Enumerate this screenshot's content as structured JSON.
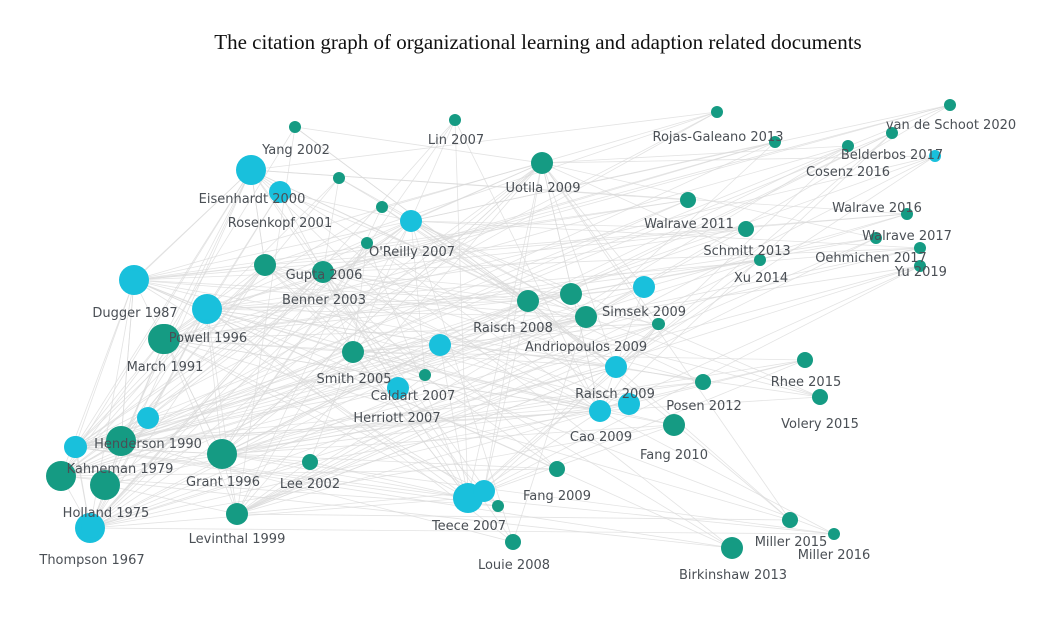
{
  "title": "The citation graph of organizational learning and adaption related documents",
  "colors": {
    "teal": "#159b83",
    "cyan": "#19c0dc",
    "edge": "#d9d9d9",
    "label": "#4a4f55"
  },
  "nodes": [
    {
      "id": "yang2002",
      "label": "Yang 2002",
      "color": "teal",
      "size": "xs"
    },
    {
      "id": "lin2007",
      "label": "Lin 2007",
      "color": "teal",
      "size": "xs"
    },
    {
      "id": "rojas2013",
      "label": "Rojas-Galeano 2013",
      "color": "teal",
      "size": "xs"
    },
    {
      "id": "vandeschoot2020",
      "label": "van de Schoot 2020",
      "color": "teal",
      "size": "xs"
    },
    {
      "id": "belderbos2017",
      "label": "Belderbos 2017",
      "color": "teal",
      "size": "xs"
    },
    {
      "id": "cosenz2016",
      "label": "Cosenz 2016",
      "color": "teal",
      "size": "xs"
    },
    {
      "id": "walrave2016",
      "label": "Walrave 2016",
      "color": "teal",
      "size": "xs"
    },
    {
      "id": "walrave2017",
      "label": "Walrave 2017",
      "color": "teal",
      "size": "xs"
    },
    {
      "id": "oehmichen2017",
      "label": "Oehmichen 2017",
      "color": "teal",
      "size": "xs"
    },
    {
      "id": "yu2019",
      "label": "Yu 2019",
      "color": "teal",
      "size": "xs"
    },
    {
      "id": "eisenhardt2000",
      "label": "Eisenhardt 2000",
      "color": "cyan",
      "size": "l"
    },
    {
      "id": "rosenkopf2001",
      "label": "Rosenkopf 2001",
      "color": "cyan",
      "size": "m"
    },
    {
      "id": "oreilly2007",
      "label": "O'Reilly 2007",
      "color": "cyan",
      "size": "m"
    },
    {
      "id": "uotila2009",
      "label": "Uotila 2009",
      "color": "teal",
      "size": "m"
    },
    {
      "id": "walrave2011",
      "label": "Walrave 2011",
      "color": "teal",
      "size": "s"
    },
    {
      "id": "schmitt2013",
      "label": "Schmitt 2013",
      "color": "teal",
      "size": "s"
    },
    {
      "id": "xu2014",
      "label": "Xu 2014",
      "color": "teal",
      "size": "xs"
    },
    {
      "id": "gupta2006",
      "label": "Gupta 2006",
      "color": "teal",
      "size": "m"
    },
    {
      "id": "benner2003",
      "label": "Benner 2003",
      "color": "teal",
      "size": "m"
    },
    {
      "id": "dugger1987",
      "label": "Dugger 1987",
      "color": "cyan",
      "size": "l"
    },
    {
      "id": "powell1996",
      "label": "Powell 1996",
      "color": "cyan",
      "size": "l"
    },
    {
      "id": "march1991",
      "label": "March 1991",
      "color": "teal",
      "size": "l"
    },
    {
      "id": "raisch2008",
      "label": "Raisch 2008",
      "color": "teal",
      "size": "m"
    },
    {
      "id": "simsek2009",
      "label": "Simsek 2009",
      "color": "teal",
      "size": "m"
    },
    {
      "id": "andriopoulos2009",
      "label": "Andriopoulos 2009",
      "color": "teal",
      "size": "xs"
    },
    {
      "id": "smith2005",
      "label": "Smith 2005",
      "color": "teal",
      "size": "m"
    },
    {
      "id": "caldart2007",
      "label": "Caldart 2007",
      "color": "cyan",
      "size": "m"
    },
    {
      "id": "herriott2007",
      "label": "Herriott 2007",
      "color": "teal",
      "size": "xs"
    },
    {
      "id": "raisch2009",
      "label": "Raisch 2009",
      "color": "cyan",
      "size": "m"
    },
    {
      "id": "rhee2015",
      "label": "Rhee 2015",
      "color": "teal",
      "size": "s"
    },
    {
      "id": "posen2012",
      "label": "Posen 2012",
      "color": "teal",
      "size": "s"
    },
    {
      "id": "volery2015",
      "label": "Volery 2015",
      "color": "teal",
      "size": "s"
    },
    {
      "id": "cao2009",
      "label": "Cao 2009",
      "color": "cyan",
      "size": "m"
    },
    {
      "id": "fang2010",
      "label": "Fang 2010",
      "color": "teal",
      "size": "m"
    },
    {
      "id": "henderson1990",
      "label": "Henderson 1990",
      "color": "teal",
      "size": "l"
    },
    {
      "id": "kahneman1979",
      "label": "Kahneman 1979",
      "color": "cyan",
      "size": "m"
    },
    {
      "id": "grant1996",
      "label": "Grant 1996",
      "color": "teal",
      "size": "l"
    },
    {
      "id": "lee2002",
      "label": "Lee 2002",
      "color": "teal",
      "size": "s"
    },
    {
      "id": "fang2009",
      "label": "Fang 2009",
      "color": "teal",
      "size": "s"
    },
    {
      "id": "holland1975",
      "label": "Holland 1975",
      "color": "teal",
      "size": "l"
    },
    {
      "id": "levinthal1999",
      "label": "Levinthal 1999",
      "color": "teal",
      "size": "m"
    },
    {
      "id": "teece2007",
      "label": "Teece 2007",
      "color": "cyan",
      "size": "l"
    },
    {
      "id": "thompson1967",
      "label": "Thompson 1967",
      "color": "cyan",
      "size": "l"
    },
    {
      "id": "louie2008",
      "label": "Louie 2008",
      "color": "teal",
      "size": "s"
    },
    {
      "id": "miller2015",
      "label": "Miller 2015",
      "color": "teal",
      "size": "s"
    },
    {
      "id": "miller2016",
      "label": "Miller 2016",
      "color": "teal",
      "size": "xs"
    },
    {
      "id": "birkinshaw2013",
      "label": "Birkinshaw 2013",
      "color": "teal",
      "size": "m"
    },
    {
      "id": "n_top1",
      "label": "",
      "color": "teal",
      "size": "xs"
    },
    {
      "id": "n_top2",
      "label": "",
      "color": "teal",
      "size": "xs"
    },
    {
      "id": "n_top3",
      "label": "",
      "color": "teal",
      "size": "xs"
    },
    {
      "id": "n_c1",
      "label": "",
      "color": "teal",
      "size": "l"
    },
    {
      "id": "n_c2",
      "label": "",
      "color": "teal",
      "size": "m"
    },
    {
      "id": "n_c3",
      "label": "",
      "color": "cyan",
      "size": "m"
    },
    {
      "id": "n_c4",
      "label": "",
      "color": "cyan",
      "size": "m"
    },
    {
      "id": "n_c5",
      "label": "",
      "color": "cyan",
      "size": "m"
    },
    {
      "id": "n_c6",
      "label": "",
      "color": "cyan",
      "size": "m"
    },
    {
      "id": "n_c7",
      "label": "",
      "color": "cyan",
      "size": "m"
    },
    {
      "id": "n_c8",
      "label": "",
      "color": "cyan",
      "size": "m"
    },
    {
      "id": "n_c9",
      "label": "",
      "color": "teal",
      "size": "xs"
    },
    {
      "id": "n_c10",
      "label": "",
      "color": "cyan",
      "size": "m"
    },
    {
      "id": "n_c11",
      "label": "",
      "color": "teal",
      "size": "l"
    },
    {
      "id": "n_c12",
      "label": "",
      "color": "cyan",
      "size": "m"
    },
    {
      "id": "n_c13",
      "label": "",
      "color": "cyan",
      "size": "m"
    },
    {
      "id": "n_c14",
      "label": "",
      "color": "teal",
      "size": "xs"
    },
    {
      "id": "n_c15",
      "label": "",
      "color": "cyan",
      "size": "xs"
    },
    {
      "id": "n_c16",
      "label": "",
      "color": "teal",
      "size": "xs"
    }
  ]
}
